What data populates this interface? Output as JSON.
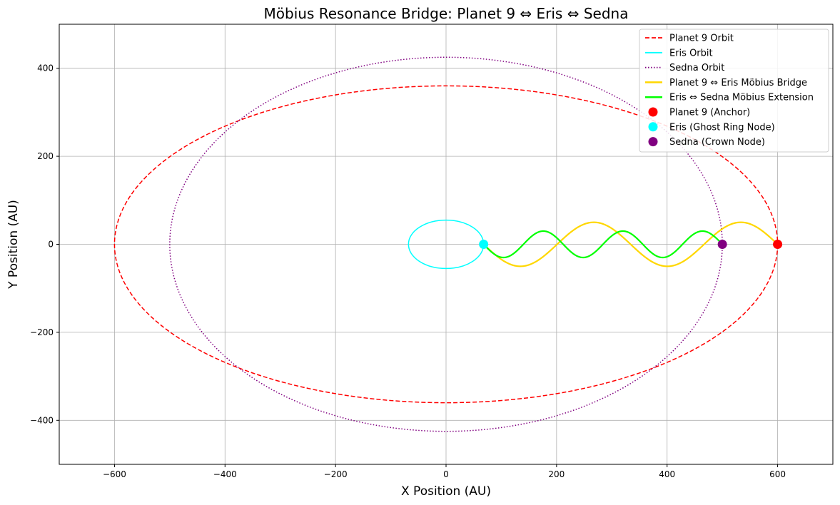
{
  "chart_data": {
    "type": "line",
    "title": "Möbius Resonance Bridge: Planet 9 ⇔ Eris ⇔ Sedna",
    "xlabel": "X Position (AU)",
    "ylabel": "Y Position (AU)",
    "xlim": [
      -700,
      700
    ],
    "ylim": [
      -500,
      500
    ],
    "xticks": [
      -600,
      -400,
      -200,
      0,
      200,
      400,
      600
    ],
    "yticks": [
      -400,
      -200,
      0,
      200,
      400
    ],
    "xtick_labels": [
      "−600",
      "−400",
      "−200",
      "0",
      "200",
      "400",
      "600"
    ],
    "ytick_labels": [
      "−400",
      "−200",
      "0",
      "200",
      "400"
    ],
    "grid": true,
    "legend_position": "top-right",
    "orbits": [
      {
        "name": "Planet 9 Orbit",
        "shape": "ellipse",
        "center": [
          0,
          0
        ],
        "semi_x": 600,
        "semi_y": 360,
        "color": "#ff0000",
        "style": "dashed"
      },
      {
        "name": "Eris Orbit",
        "shape": "ellipse",
        "center": [
          0,
          0
        ],
        "semi_x": 68,
        "semi_y": 55,
        "color": "#00ffff",
        "style": "solid"
      },
      {
        "name": "Sedna Orbit",
        "shape": "ellipse",
        "center": [
          0,
          0
        ],
        "semi_x": 500,
        "semi_y": 425,
        "color": "#800080",
        "style": "dotted"
      }
    ],
    "bridges": [
      {
        "name": "Planet 9 ⇔ Eris Möbius Bridge",
        "x_start": 68,
        "x_end": 600,
        "amplitude": 50,
        "half_cycles": 4,
        "color": "#ffd700",
        "style": "solid"
      },
      {
        "name": "Eris ⇔ Sedna Möbius Extension",
        "x_start": 68,
        "x_end": 500,
        "amplitude": 30,
        "half_cycles": 6,
        "color": "#00ff00",
        "style": "solid"
      }
    ],
    "points": [
      {
        "name": "Planet 9 (Anchor)",
        "x": 600,
        "y": 0,
        "color": "#ff0000"
      },
      {
        "name": "Eris (Ghost Ring Node)",
        "x": 68,
        "y": 0,
        "color": "#00ffff"
      },
      {
        "name": "Sedna (Crown Node)",
        "x": 500,
        "y": 0,
        "color": "#800080"
      }
    ]
  }
}
